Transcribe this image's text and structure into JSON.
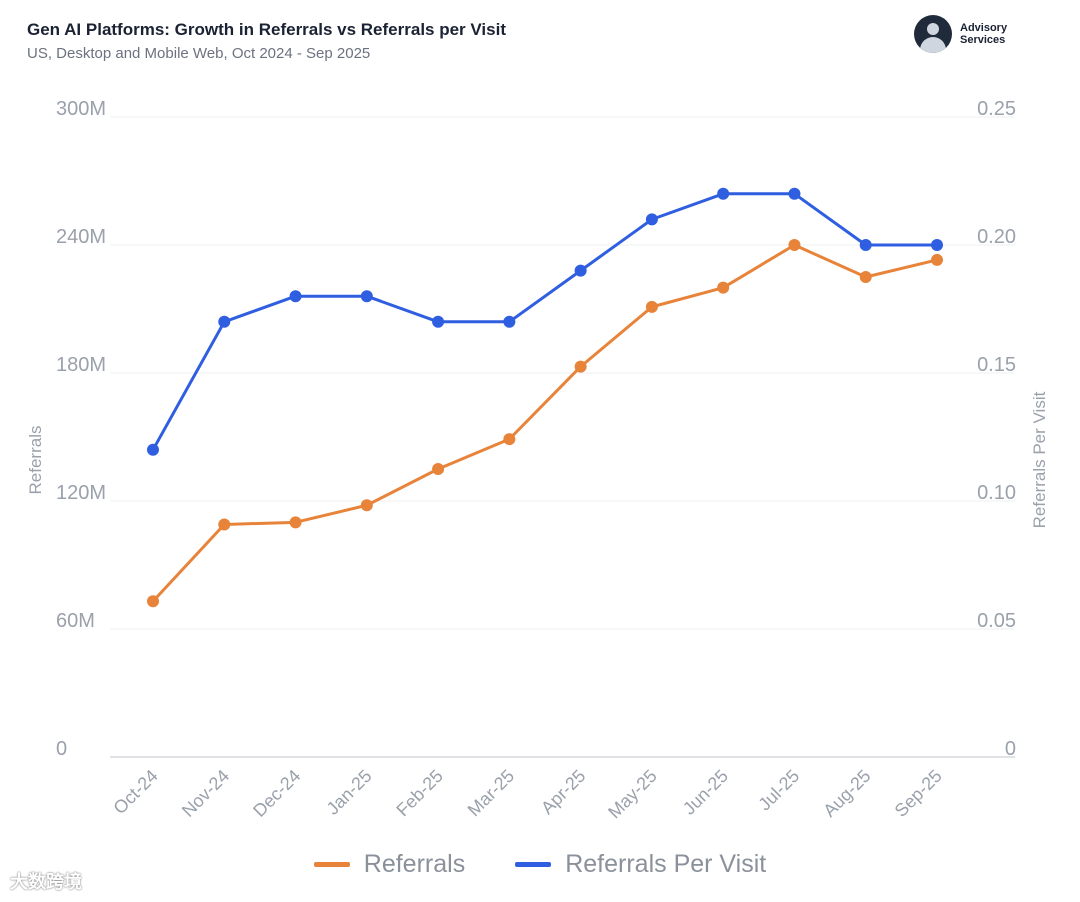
{
  "header": {
    "title": "Gen AI Platforms: Growth in Referrals vs Referrals per Visit",
    "subtitle": "US, Desktop and Mobile Web, Oct 2024 - Sep 2025"
  },
  "brand": {
    "line1": "Advisory",
    "line2": "Services"
  },
  "watermark": "大数跨境",
  "colors": {
    "referrals": "#e8833a",
    "referrals_per_visit": "#2f5fe0",
    "grid": "#eef0f2",
    "axis": "#d6d9dd"
  },
  "chart_data": {
    "type": "line",
    "title": "Gen AI Platforms: Growth in Referrals vs Referrals per Visit",
    "categories": [
      "Oct-24",
      "Nov-24",
      "Dec-24",
      "Jan-25",
      "Feb-25",
      "Mar-25",
      "Apr-25",
      "May-25",
      "Jun-25",
      "Jul-25",
      "Aug-25",
      "Sep-25"
    ],
    "series": [
      {
        "name": "Referrals",
        "axis": "left",
        "values": [
          73,
          109,
          110,
          118,
          135,
          149,
          183,
          211,
          220,
          240,
          225,
          233
        ]
      },
      {
        "name": "Referrals Per Visit",
        "axis": "right",
        "values": [
          0.12,
          0.17,
          0.18,
          0.18,
          0.17,
          0.17,
          0.19,
          0.21,
          0.22,
          0.22,
          0.2,
          0.2
        ]
      }
    ],
    "y_left": {
      "label": "Referrals",
      "range": [
        0,
        300
      ],
      "ticks": [
        0,
        60,
        120,
        180,
        240,
        300
      ],
      "tick_labels": [
        "0",
        "60M",
        "120M",
        "180M",
        "240M",
        "300M"
      ]
    },
    "y_right": {
      "label": "Referrals Per Visit",
      "range": [
        0,
        0.25
      ],
      "ticks": [
        0,
        0.05,
        0.1,
        0.15,
        0.2,
        0.25
      ],
      "tick_labels": [
        "0",
        "0.05",
        "0.10",
        "0.15",
        "0.20",
        "0.25"
      ]
    },
    "legend": [
      "Referrals",
      "Referrals Per Visit"
    ],
    "legend_position": "bottom"
  }
}
